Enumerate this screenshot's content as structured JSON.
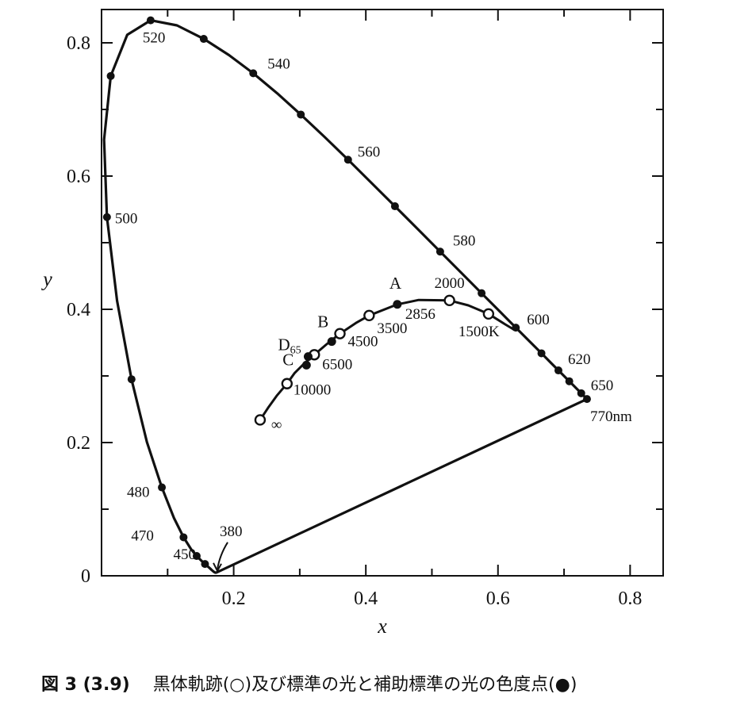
{
  "chart_data": {
    "type": "line",
    "title": "",
    "xlabel": "x",
    "ylabel": "y",
    "xlim": [
      0,
      0.85
    ],
    "ylim": [
      0,
      0.85
    ],
    "x_ticks": [
      0.2,
      0.4,
      0.6,
      0.8
    ],
    "x_tick_labels": [
      "0.2",
      "0.4",
      "0.6",
      "0.8"
    ],
    "y_ticks": [
      0,
      0.2,
      0.4,
      0.6,
      0.8
    ],
    "y_tick_labels": [
      "0",
      "0.2",
      "0.4",
      "0.6",
      "0.8"
    ],
    "grid": false,
    "spectral_locus": [
      [
        0.1741,
        0.005
      ],
      [
        0.1738,
        0.0049
      ],
      [
        0.1736,
        0.0049
      ],
      [
        0.1733,
        0.0048
      ],
      [
        0.173,
        0.0048
      ],
      [
        0.1726,
        0.0048
      ],
      [
        0.1721,
        0.0048
      ],
      [
        0.1714,
        0.0051
      ],
      [
        0.1703,
        0.0058
      ],
      [
        0.1689,
        0.0069
      ],
      [
        0.1669,
        0.0086
      ],
      [
        0.1644,
        0.0109
      ],
      [
        0.1611,
        0.0138
      ],
      [
        0.1566,
        0.0177
      ],
      [
        0.151,
        0.0227
      ],
      [
        0.144,
        0.0297
      ],
      [
        0.1355,
        0.0399
      ],
      [
        0.1241,
        0.0578
      ],
      [
        0.1096,
        0.0868
      ],
      [
        0.0913,
        0.1327
      ],
      [
        0.0687,
        0.2007
      ],
      [
        0.0454,
        0.295
      ],
      [
        0.0235,
        0.4127
      ],
      [
        0.0082,
        0.5384
      ],
      [
        0.0039,
        0.6548
      ],
      [
        0.0139,
        0.7502
      ],
      [
        0.0389,
        0.812
      ],
      [
        0.0743,
        0.8338
      ],
      [
        0.1142,
        0.8262
      ],
      [
        0.1547,
        0.8059
      ],
      [
        0.1929,
        0.7816
      ],
      [
        0.2296,
        0.7543
      ],
      [
        0.2658,
        0.7243
      ],
      [
        0.3016,
        0.6923
      ],
      [
        0.3373,
        0.6589
      ],
      [
        0.3731,
        0.6245
      ],
      [
        0.4087,
        0.5896
      ],
      [
        0.4441,
        0.5547
      ],
      [
        0.4788,
        0.5202
      ],
      [
        0.5125,
        0.4866
      ],
      [
        0.5448,
        0.4544
      ],
      [
        0.5752,
        0.4242
      ],
      [
        0.6029,
        0.3965
      ],
      [
        0.627,
        0.3725
      ],
      [
        0.6482,
        0.3514
      ],
      [
        0.6658,
        0.334
      ],
      [
        0.6801,
        0.3197
      ],
      [
        0.6915,
        0.3083
      ],
      [
        0.7006,
        0.2993
      ],
      [
        0.7079,
        0.292
      ],
      [
        0.714,
        0.2859
      ],
      [
        0.719,
        0.2809
      ],
      [
        0.723,
        0.277
      ],
      [
        0.726,
        0.274
      ],
      [
        0.7283,
        0.2717
      ],
      [
        0.73,
        0.27
      ],
      [
        0.7311,
        0.2689
      ],
      [
        0.732,
        0.268
      ],
      [
        0.7327,
        0.2673
      ],
      [
        0.7334,
        0.2666
      ],
      [
        0.734,
        0.266
      ],
      [
        0.7344,
        0.2656
      ],
      [
        0.7346,
        0.2654
      ],
      [
        0.7347,
        0.2653
      ],
      [
        0.7347,
        0.2653
      ]
    ],
    "purple_line": [
      [
        0.1741,
        0.005
      ],
      [
        0.7347,
        0.2653
      ]
    ],
    "spectral_markers": [
      {
        "label": "380",
        "x": 0.1741,
        "y": 0.005
      },
      {
        "label": "450",
        "x": 0.1566,
        "y": 0.0177
      },
      {
        "label": "",
        "x": 0.144,
        "y": 0.0297
      },
      {
        "label": "470",
        "x": 0.1241,
        "y": 0.0578
      },
      {
        "label": "480",
        "x": 0.0913,
        "y": 0.1327
      },
      {
        "label": "",
        "x": 0.0454,
        "y": 0.295
      },
      {
        "label": "500",
        "x": 0.0082,
        "y": 0.5384
      },
      {
        "label": "",
        "x": 0.0139,
        "y": 0.7502
      },
      {
        "label": "520",
        "x": 0.0743,
        "y": 0.8338
      },
      {
        "label": "",
        "x": 0.1547,
        "y": 0.8059
      },
      {
        "label": "540",
        "x": 0.2296,
        "y": 0.7543
      },
      {
        "label": "",
        "x": 0.3016,
        "y": 0.6923
      },
      {
        "label": "560",
        "x": 0.3731,
        "y": 0.6245
      },
      {
        "label": "",
        "x": 0.4441,
        "y": 0.5547
      },
      {
        "label": "580",
        "x": 0.5125,
        "y": 0.4866
      },
      {
        "label": "",
        "x": 0.5752,
        "y": 0.4242
      },
      {
        "label": "600",
        "x": 0.627,
        "y": 0.3725
      },
      {
        "label": "",
        "x": 0.6658,
        "y": 0.334
      },
      {
        "label": "620",
        "x": 0.6915,
        "y": 0.3083
      },
      {
        "label": "",
        "x": 0.7079,
        "y": 0.292
      },
      {
        "label": "650",
        "x": 0.726,
        "y": 0.274
      },
      {
        "label": "770nm",
        "x": 0.7347,
        "y": 0.2653
      }
    ],
    "planckian_locus": [
      [
        0.24,
        0.234
      ],
      [
        0.252,
        0.252
      ],
      [
        0.265,
        0.27
      ],
      [
        0.2807,
        0.2884
      ],
      [
        0.292,
        0.304
      ],
      [
        0.306,
        0.318
      ],
      [
        0.3221,
        0.3318
      ],
      [
        0.34,
        0.347
      ],
      [
        0.3608,
        0.3635
      ],
      [
        0.385,
        0.3795
      ],
      [
        0.405,
        0.3907
      ],
      [
        0.4473,
        0.4073
      ],
      [
        0.48,
        0.414
      ],
      [
        0.5266,
        0.4133
      ],
      [
        0.555,
        0.406
      ],
      [
        0.5857,
        0.3931
      ],
      [
        0.61,
        0.378
      ],
      [
        0.625,
        0.369
      ]
    ],
    "blackbody_points": [
      {
        "label": "∞",
        "x": 0.24,
        "y": 0.234
      },
      {
        "label": "10000",
        "x": 0.2807,
        "y": 0.2884
      },
      {
        "label": "6500",
        "x": 0.3221,
        "y": 0.3318
      },
      {
        "label": "4500",
        "x": 0.3608,
        "y": 0.3635
      },
      {
        "label": "3500",
        "x": 0.405,
        "y": 0.3907
      },
      {
        "label": "2000",
        "x": 0.5266,
        "y": 0.4133
      },
      {
        "label": "1500K",
        "x": 0.5857,
        "y": 0.3931
      }
    ],
    "standard_illuminants": [
      {
        "label": "A",
        "x": 0.4476,
        "y": 0.4074,
        "value_label": "2856"
      },
      {
        "label": "B",
        "x": 0.3484,
        "y": 0.3516,
        "value_label": ""
      },
      {
        "label": "C",
        "x": 0.3101,
        "y": 0.3162,
        "value_label": ""
      },
      {
        "label": "D",
        "sub": "65",
        "x": 0.3127,
        "y": 0.329,
        "value_label": ""
      }
    ]
  },
  "caption": {
    "figure_number": "図 3 (3.9)",
    "text": "黒体軌跡(○)及び標準の光と補助標準の光の色度点(●)"
  }
}
